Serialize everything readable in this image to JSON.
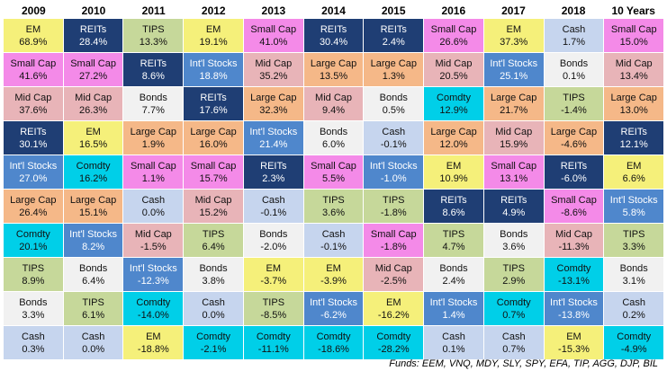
{
  "chart_data": {
    "type": "table",
    "title": "",
    "columns": [
      "2009",
      "2010",
      "2011",
      "2012",
      "2013",
      "2014",
      "2015",
      "2016",
      "2017",
      "2018",
      "10 Years"
    ],
    "asset_colors": {
      "EM": "#f5f07a",
      "REITs": "#1f3e74",
      "TIPS": "#c6d89a",
      "Small Cap": "#f48ae8",
      "Cash": "#c6d5ee",
      "Mid Cap": "#e8b4b8",
      "Large Cap": "#f5b888",
      "Int'l Stocks": "#4f87cc",
      "Bonds": "#f1f1f1",
      "Comdty": "#00cfe8"
    },
    "dark_assets": [
      "REITs",
      "Int'l Stocks"
    ],
    "rows": [
      [
        [
          "EM",
          "68.9%"
        ],
        [
          "REITs",
          "28.4%"
        ],
        [
          "TIPS",
          "13.3%"
        ],
        [
          "EM",
          "19.1%"
        ],
        [
          "Small Cap",
          "41.0%"
        ],
        [
          "REITs",
          "30.4%"
        ],
        [
          "REITs",
          "2.4%"
        ],
        [
          "Small Cap",
          "26.6%"
        ],
        [
          "EM",
          "37.3%"
        ],
        [
          "Cash",
          "1.7%"
        ],
        [
          "Small Cap",
          "15.0%"
        ]
      ],
      [
        [
          "Small Cap",
          "41.6%"
        ],
        [
          "Small Cap",
          "27.2%"
        ],
        [
          "REITs",
          "8.6%"
        ],
        [
          "Int'l Stocks",
          "18.8%"
        ],
        [
          "Mid Cap",
          "35.2%"
        ],
        [
          "Large Cap",
          "13.5%"
        ],
        [
          "Large Cap",
          "1.3%"
        ],
        [
          "Mid Cap",
          "20.5%"
        ],
        [
          "Int'l Stocks",
          "25.1%"
        ],
        [
          "Bonds",
          "0.1%"
        ],
        [
          "Mid Cap",
          "13.4%"
        ]
      ],
      [
        [
          "Mid Cap",
          "37.6%"
        ],
        [
          "Mid Cap",
          "26.3%"
        ],
        [
          "Bonds",
          "7.7%"
        ],
        [
          "REITs",
          "17.6%"
        ],
        [
          "Large Cap",
          "32.3%"
        ],
        [
          "Mid Cap",
          "9.4%"
        ],
        [
          "Bonds",
          "0.5%"
        ],
        [
          "Comdty",
          "12.9%"
        ],
        [
          "Large Cap",
          "21.7%"
        ],
        [
          "TIPS",
          "-1.4%"
        ],
        [
          "Large Cap",
          "13.0%"
        ]
      ],
      [
        [
          "REITs",
          "30.1%"
        ],
        [
          "EM",
          "16.5%"
        ],
        [
          "Large Cap",
          "1.9%"
        ],
        [
          "Large Cap",
          "16.0%"
        ],
        [
          "Int'l Stocks",
          "21.4%"
        ],
        [
          "Bonds",
          "6.0%"
        ],
        [
          "Cash",
          "-0.1%"
        ],
        [
          "Large Cap",
          "12.0%"
        ],
        [
          "Mid Cap",
          "15.9%"
        ],
        [
          "Large Cap",
          "-4.6%"
        ],
        [
          "REITs",
          "12.1%"
        ]
      ],
      [
        [
          "Int'l Stocks",
          "27.0%"
        ],
        [
          "Comdty",
          "16.2%"
        ],
        [
          "Small Cap",
          "1.1%"
        ],
        [
          "Small Cap",
          "15.7%"
        ],
        [
          "REITs",
          "2.3%"
        ],
        [
          "Small Cap",
          "5.5%"
        ],
        [
          "Int'l Stocks",
          "-1.0%"
        ],
        [
          "EM",
          "10.9%"
        ],
        [
          "Small Cap",
          "13.1%"
        ],
        [
          "REITs",
          "-6.0%"
        ],
        [
          "EM",
          "6.6%"
        ]
      ],
      [
        [
          "Large Cap",
          "26.4%"
        ],
        [
          "Large Cap",
          "15.1%"
        ],
        [
          "Cash",
          "0.0%"
        ],
        [
          "Mid Cap",
          "15.2%"
        ],
        [
          "Cash",
          "-0.1%"
        ],
        [
          "TIPS",
          "3.6%"
        ],
        [
          "TIPS",
          "-1.8%"
        ],
        [
          "REITs",
          "8.6%"
        ],
        [
          "REITs",
          "4.9%"
        ],
        [
          "Small Cap",
          "-8.6%"
        ],
        [
          "Int'l Stocks",
          "5.8%"
        ]
      ],
      [
        [
          "Comdty",
          "20.1%"
        ],
        [
          "Int'l Stocks",
          "8.2%"
        ],
        [
          "Mid Cap",
          "-1.5%"
        ],
        [
          "TIPS",
          "6.4%"
        ],
        [
          "Bonds",
          "-2.0%"
        ],
        [
          "Cash",
          "-0.1%"
        ],
        [
          "Small Cap",
          "-1.8%"
        ],
        [
          "TIPS",
          "4.7%"
        ],
        [
          "Bonds",
          "3.6%"
        ],
        [
          "Mid Cap",
          "-11.3%"
        ],
        [
          "TIPS",
          "3.3%"
        ]
      ],
      [
        [
          "TIPS",
          "8.9%"
        ],
        [
          "Bonds",
          "6.4%"
        ],
        [
          "Int'l Stocks",
          "-12.3%"
        ],
        [
          "Bonds",
          "3.8%"
        ],
        [
          "EM",
          "-3.7%"
        ],
        [
          "EM",
          "-3.9%"
        ],
        [
          "Mid Cap",
          "-2.5%"
        ],
        [
          "Bonds",
          "2.4%"
        ],
        [
          "TIPS",
          "2.9%"
        ],
        [
          "Comdty",
          "-13.1%"
        ],
        [
          "Bonds",
          "3.1%"
        ]
      ],
      [
        [
          "Bonds",
          "3.3%"
        ],
        [
          "TIPS",
          "6.1%"
        ],
        [
          "Comdty",
          "-14.0%"
        ],
        [
          "Cash",
          "0.0%"
        ],
        [
          "TIPS",
          "-8.5%"
        ],
        [
          "Int'l Stocks",
          "-6.2%"
        ],
        [
          "EM",
          "-16.2%"
        ],
        [
          "Int'l Stocks",
          "1.4%"
        ],
        [
          "Comdty",
          "0.7%"
        ],
        [
          "Int'l Stocks",
          "-13.8%"
        ],
        [
          "Cash",
          "0.2%"
        ]
      ],
      [
        [
          "Cash",
          "0.3%"
        ],
        [
          "Cash",
          "0.0%"
        ],
        [
          "EM",
          "-18.8%"
        ],
        [
          "Comdty",
          "-2.1%"
        ],
        [
          "Comdty",
          "-11.1%"
        ],
        [
          "Comdty",
          "-18.6%"
        ],
        [
          "Comdty",
          "-28.2%"
        ],
        [
          "Cash",
          "0.1%"
        ],
        [
          "Cash",
          "0.7%"
        ],
        [
          "EM",
          "-15.3%"
        ],
        [
          "Comdty",
          "-4.9%"
        ]
      ]
    ]
  },
  "footnote": "Funds: EEM, VNQ, MDY, SLY, SPY, EFA, TIP, AGG, DJP, BIL"
}
